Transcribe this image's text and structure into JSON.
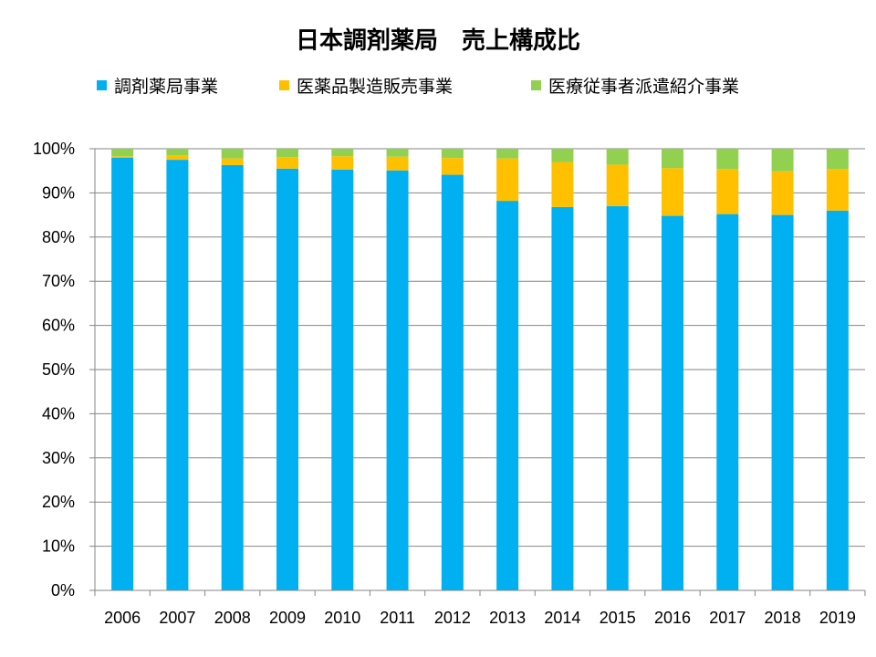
{
  "chart_data": {
    "type": "bar",
    "stacked": true,
    "title": "日本調剤薬局　売上構成比",
    "categories": [
      "2006",
      "2007",
      "2008",
      "2009",
      "2010",
      "2011",
      "2012",
      "2013",
      "2014",
      "2015",
      "2016",
      "2017",
      "2018",
      "2019"
    ],
    "series": [
      {
        "name": "調剤薬局事業",
        "color": "#00B0F0",
        "values": [
          98.0,
          97.5,
          96.3,
          95.5,
          95.3,
          95.1,
          94.1,
          88.2,
          86.8,
          87.0,
          84.8,
          85.2,
          85.0,
          86.0
        ]
      },
      {
        "name": "医薬品製造販売事業",
        "color": "#FFC000",
        "values": [
          0.3,
          1.0,
          1.5,
          2.6,
          3.0,
          3.1,
          3.8,
          9.6,
          10.2,
          9.4,
          10.8,
          10.2,
          9.9,
          9.4
        ]
      },
      {
        "name": "医療従事者派遣紹介事業",
        "color": "#92D050",
        "values": [
          1.7,
          1.5,
          2.2,
          1.9,
          1.7,
          1.8,
          2.1,
          2.2,
          3.0,
          3.6,
          4.4,
          4.6,
          5.1,
          4.6
        ]
      }
    ],
    "yticks": [
      "0%",
      "10%",
      "20%",
      "30%",
      "40%",
      "50%",
      "60%",
      "70%",
      "80%",
      "90%",
      "100%"
    ],
    "ylim": [
      0,
      100
    ],
    "grid": true,
    "legend_position": "top"
  }
}
